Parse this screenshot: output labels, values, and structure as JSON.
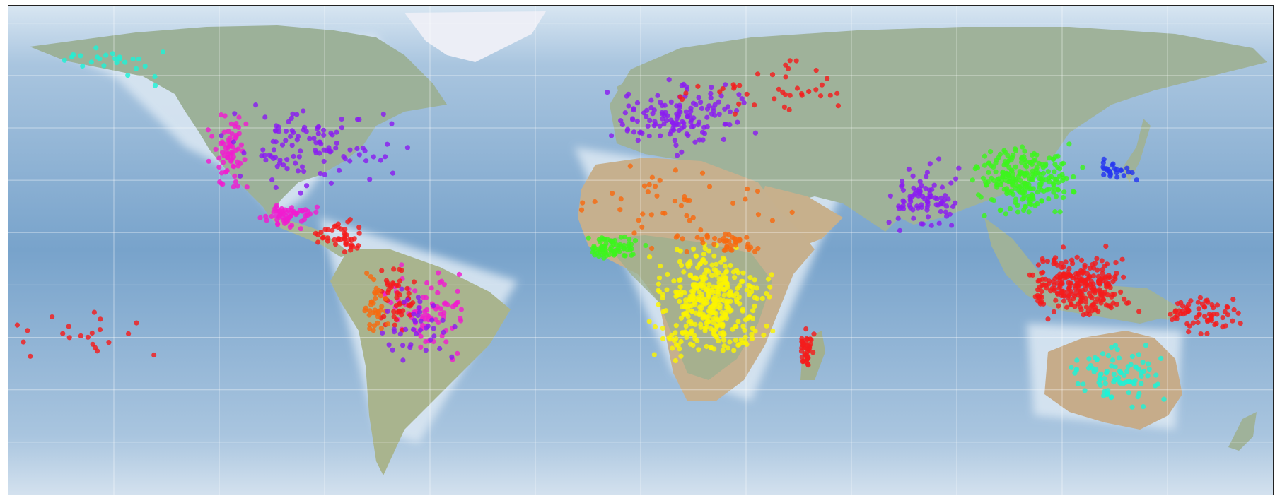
{
  "map": {
    "projection": "plate-carree",
    "extent": {
      "lon": [
        -180,
        180
      ],
      "lat": [
        -60,
        80
      ]
    },
    "gridlines": {
      "lon_step": 30,
      "lat_step": 15,
      "visible": true
    },
    "background": "shaded-relief"
  },
  "colors": {
    "ocean": "#7aa6cd",
    "ocean_shallow": "#c9dcee",
    "land": "#9fb29a",
    "desert": "#c8b390",
    "ice": "#eceef6",
    "grid": "#ffffff",
    "frame": "#222222"
  },
  "legend_groups": [
    "red",
    "orange",
    "yellow",
    "lime",
    "cyan",
    "azure",
    "blue",
    "violet",
    "magenta"
  ],
  "group_colors": {
    "red": "#f41c1c",
    "orange": "#f76a10",
    "yellow": "#fbf400",
    "lime": "#3cf51c",
    "cyan": "#1ef2d6",
    "azure": "#16a0ee",
    "blue": "#2436f0",
    "violet": "#8a1cf0",
    "magenta": "#f01ccf"
  },
  "clusters": [
    {
      "group": "magenta",
      "lon": -117,
      "lat": 38,
      "rx": 5,
      "ry": 9,
      "n": 70
    },
    {
      "group": "violet",
      "lon": -95,
      "lat": 40,
      "rx": 20,
      "ry": 9,
      "n": 110
    },
    {
      "group": "cyan",
      "lon": -150,
      "lat": 64,
      "rx": 15,
      "ry": 5,
      "n": 25
    },
    {
      "group": "magenta",
      "lon": -100,
      "lat": 20,
      "rx": 6,
      "ry": 3,
      "n": 60
    },
    {
      "group": "red",
      "lon": -86,
      "lat": 14,
      "rx": 6,
      "ry": 4,
      "n": 45
    },
    {
      "group": "magenta",
      "lon": -60,
      "lat": -8,
      "rx": 10,
      "ry": 10,
      "n": 80
    },
    {
      "group": "red",
      "lon": -70,
      "lat": -5,
      "rx": 5,
      "ry": 8,
      "n": 50
    },
    {
      "group": "orange",
      "lon": -76,
      "lat": -6,
      "rx": 3,
      "ry": 8,
      "n": 35
    },
    {
      "group": "violet",
      "lon": -63,
      "lat": -12,
      "rx": 10,
      "ry": 10,
      "n": 40
    },
    {
      "group": "violet",
      "lon": 12,
      "lat": 48,
      "rx": 16,
      "ry": 8,
      "n": 140
    },
    {
      "group": "red",
      "lon": 35,
      "lat": 57,
      "rx": 20,
      "ry": 7,
      "n": 40
    },
    {
      "group": "orange",
      "lon": 10,
      "lat": 24,
      "rx": 25,
      "ry": 10,
      "n": 45
    },
    {
      "group": "yellow",
      "lon": 20,
      "lat": -5,
      "rx": 13,
      "ry": 13,
      "n": 380
    },
    {
      "group": "lime",
      "lon": -8,
      "lat": 11,
      "rx": 7,
      "ry": 3,
      "n": 70
    },
    {
      "group": "orange",
      "lon": 25,
      "lat": 12,
      "rx": 10,
      "ry": 3,
      "n": 40
    },
    {
      "group": "red",
      "lon": 47,
      "lat": -19,
      "rx": 2,
      "ry": 5,
      "n": 40
    },
    {
      "group": "violet",
      "lon": 80,
      "lat": 25,
      "rx": 8,
      "ry": 8,
      "n": 90
    },
    {
      "group": "lime",
      "lon": 110,
      "lat": 30,
      "rx": 12,
      "ry": 8,
      "n": 230
    },
    {
      "group": "blue",
      "lon": 135,
      "lat": 33,
      "rx": 5,
      "ry": 3,
      "n": 25
    },
    {
      "group": "red",
      "lon": 125,
      "lat": 0,
      "rx": 12,
      "ry": 8,
      "n": 260
    },
    {
      "group": "red",
      "lon": 160,
      "lat": -8,
      "rx": 10,
      "ry": 5,
      "n": 70
    },
    {
      "group": "cyan",
      "lon": 135,
      "lat": -25,
      "rx": 12,
      "ry": 8,
      "n": 90
    },
    {
      "group": "red",
      "lon": -160,
      "lat": -15,
      "rx": 15,
      "ry": 5,
      "n": 22
    }
  ]
}
